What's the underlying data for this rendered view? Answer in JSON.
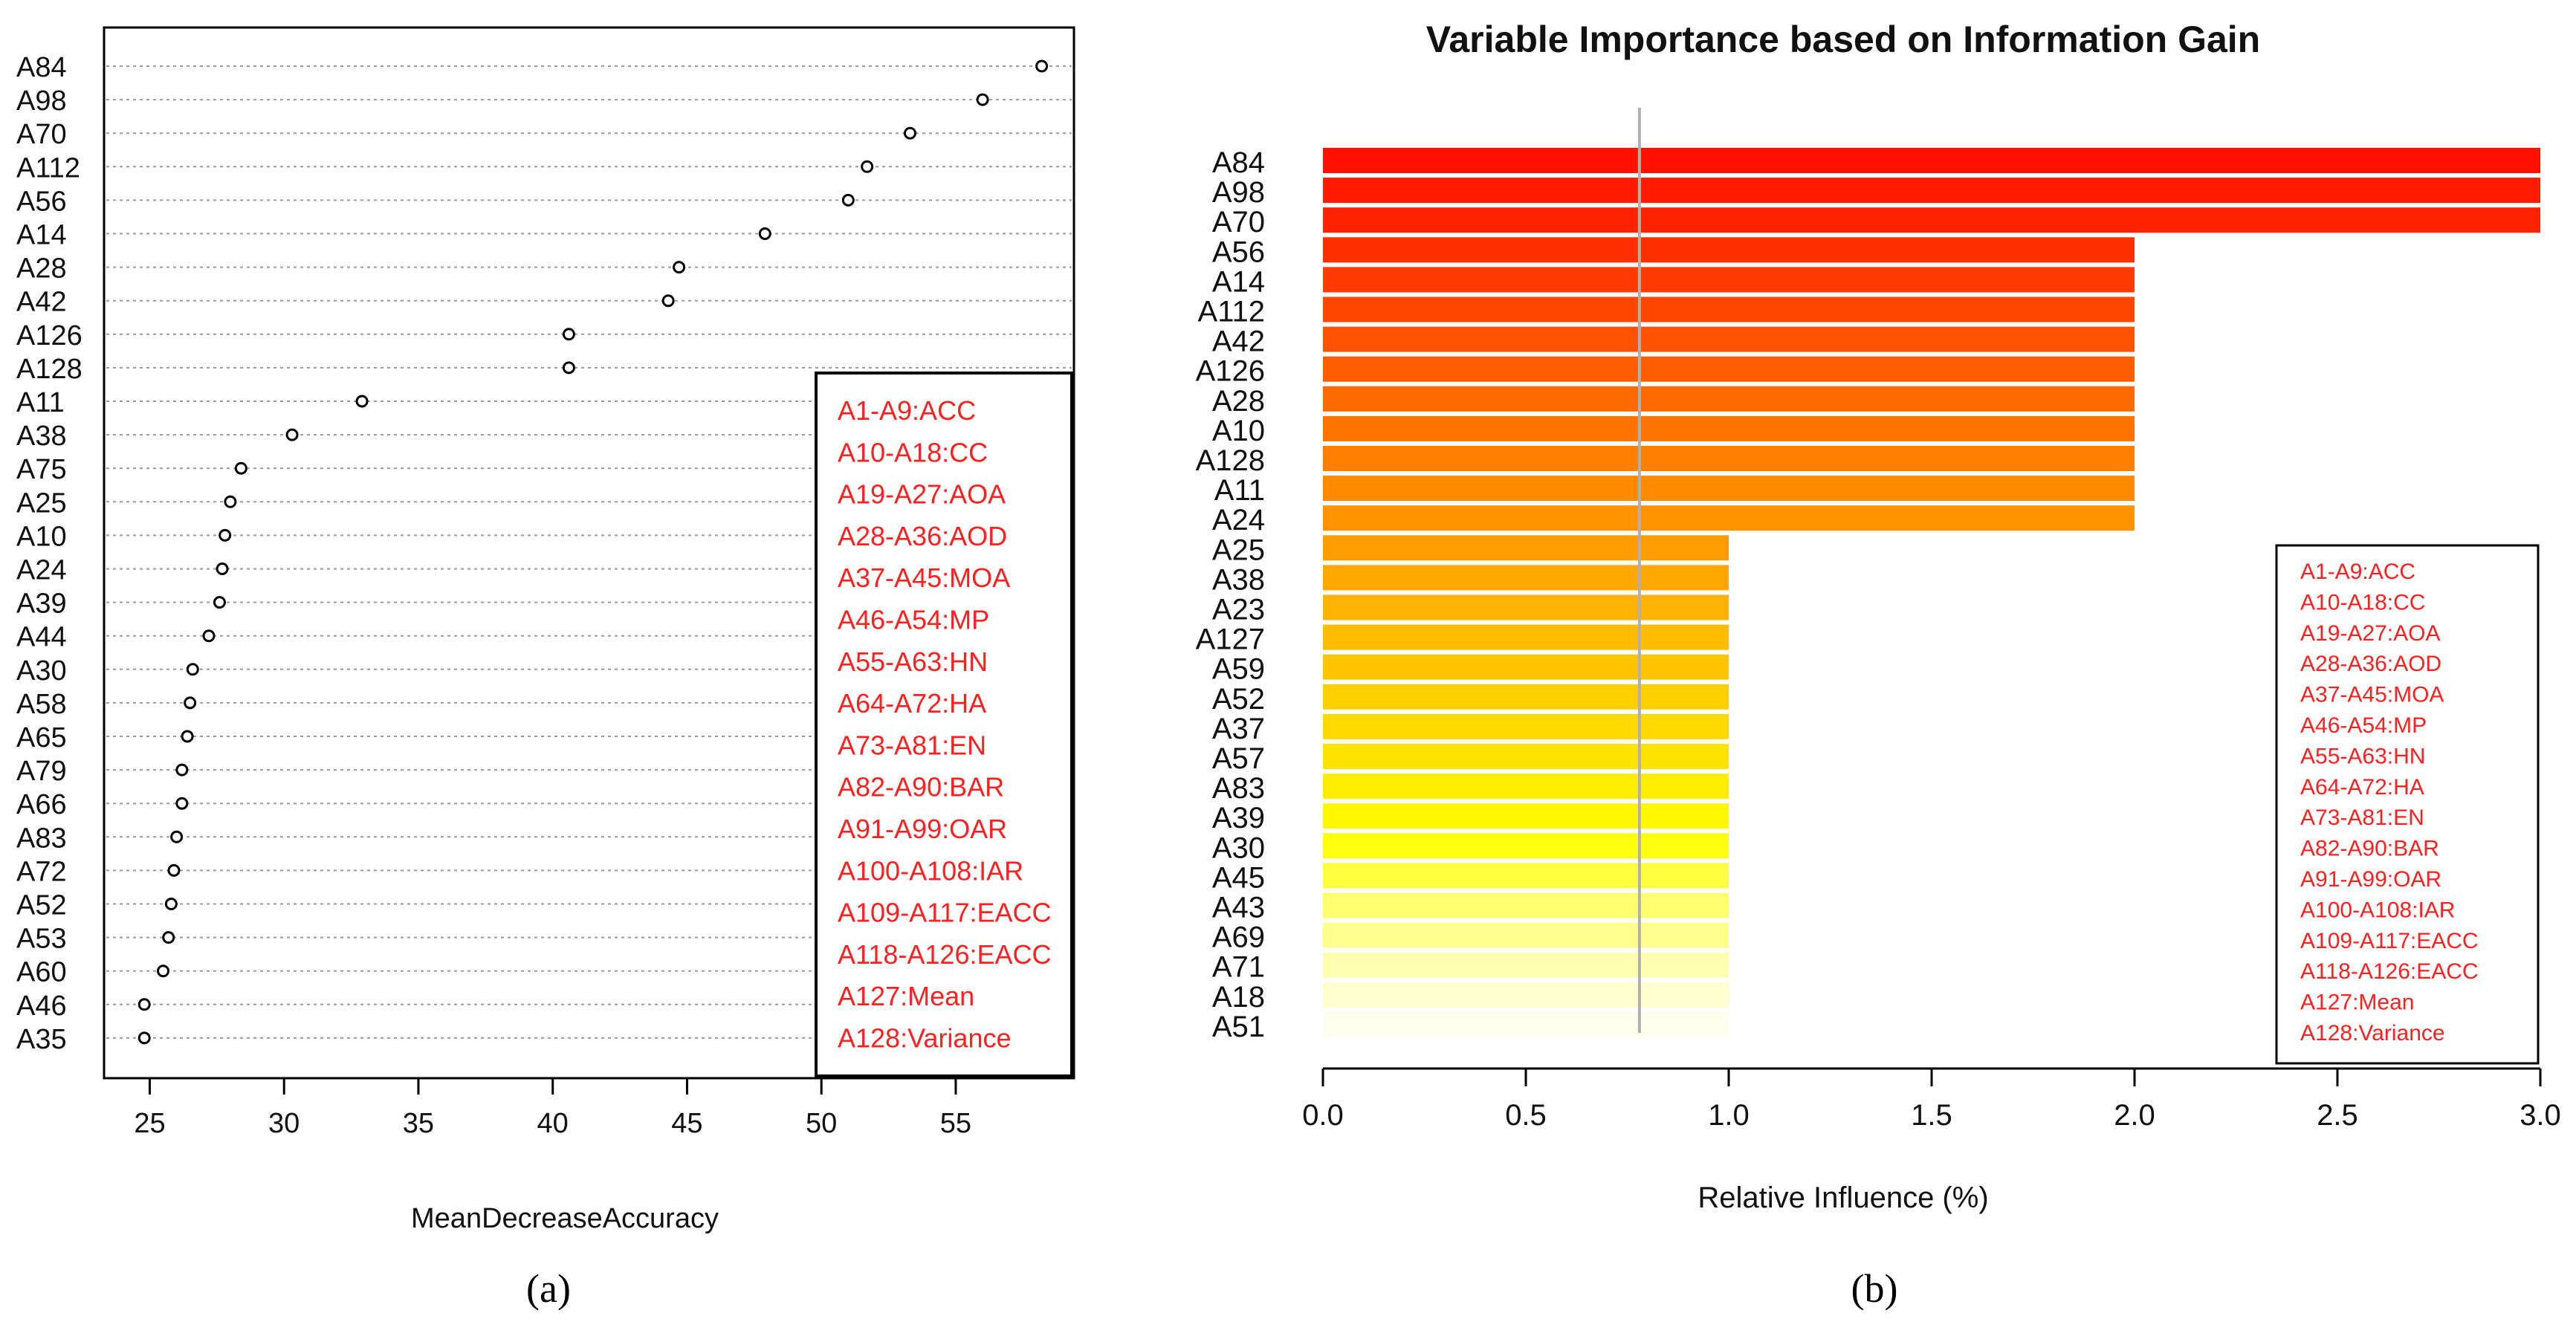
{
  "chart_data": [
    {
      "type": "scatter",
      "style": "dotchart",
      "panel_label": "(a)",
      "title": "",
      "xlabel": "MeanDecreaseAccuracy",
      "ylabel": "",
      "xlim": [
        23.3,
        59.4
      ],
      "xticks": [
        25,
        30,
        35,
        40,
        45,
        50,
        55
      ],
      "grid": true,
      "legend_position": "bottom-right",
      "legend": [
        "A1-A9:ACC",
        "A10-A18:CC",
        "A19-A27:AOA",
        "A28-A36:AOD",
        "A37-A45:MOA",
        "A46-A54:MP",
        "A55-A63:HN",
        "A64-A72:HA",
        "A73-A81:EN",
        "A82-A90:BAR",
        "A91-A99:OAR",
        "A100-A108:IAR",
        "A109-A117:EACC",
        "A118-A126:EACC",
        "A127:Mean",
        "A128:Variance"
      ],
      "categories": [
        "A84",
        "A98",
        "A70",
        "A112",
        "A56",
        "A14",
        "A28",
        "A42",
        "A126",
        "A128",
        "A11",
        "A38",
        "A75",
        "A25",
        "A10",
        "A24",
        "A39",
        "A44",
        "A30",
        "A58",
        "A65",
        "A79",
        "A66",
        "A83",
        "A72",
        "A52",
        "A53",
        "A60",
        "A46",
        "A35"
      ],
      "values": [
        58.2,
        56.0,
        53.3,
        51.7,
        51.0,
        47.9,
        44.7,
        44.3,
        40.6,
        40.6,
        32.9,
        30.3,
        28.4,
        28.0,
        27.8,
        27.7,
        27.6,
        27.2,
        26.6,
        26.5,
        26.4,
        26.2,
        26.2,
        26.0,
        25.9,
        25.8,
        25.7,
        25.5,
        24.8,
        24.8
      ]
    },
    {
      "type": "bar",
      "orientation": "horizontal",
      "panel_label": "(b)",
      "title": "Variable Importance based on Information Gain",
      "xlabel": "Relative Influence (%)",
      "ylabel": "",
      "xlim": [
        0,
        3
      ],
      "xticks": [
        "0.0",
        "0.5",
        "1.0",
        "1.5",
        "2.0",
        "2.5",
        "3.0"
      ],
      "reference_line": 0.78,
      "legend_position": "bottom-right",
      "legend": [
        "A1-A9:ACC",
        "A10-A18:CC",
        "A19-A27:AOA",
        "A28-A36:AOD",
        "A37-A45:MOA",
        "A46-A54:MP",
        "A55-A63:HN",
        "A64-A72:HA",
        "A73-A81:EN",
        "A82-A90:BAR",
        "A91-A99:OAR",
        "A100-A108:IAR",
        "A109-A117:EACC",
        "A118-A126:EACC",
        "A127:Mean",
        "A128:Variance"
      ],
      "categories": [
        "A84",
        "A98",
        "A70",
        "A56",
        "A14",
        "A112",
        "A42",
        "A126",
        "A28",
        "A10",
        "A128",
        "A11",
        "A24",
        "A25",
        "A38",
        "A23",
        "A127",
        "A59",
        "A52",
        "A37",
        "A57",
        "A83",
        "A39",
        "A30",
        "A45",
        "A43",
        "A69",
        "A71",
        "A18",
        "A51"
      ],
      "values": [
        3,
        3,
        3,
        2,
        2,
        2,
        2,
        2,
        2,
        2,
        2,
        2,
        2,
        1,
        1,
        1,
        1,
        1,
        1,
        1,
        1,
        1,
        1,
        1,
        1,
        1,
        1,
        1,
        1,
        1
      ],
      "colors": [
        "#ff1100",
        "#ff1a00",
        "#ff2300",
        "#ff2e00",
        "#ff3a00",
        "#ff4600",
        "#ff5200",
        "#ff5e00",
        "#ff6a00",
        "#ff7500",
        "#ff8000",
        "#ff8a00",
        "#ff9400",
        "#ff9e00",
        "#ffa800",
        "#ffb200",
        "#ffbc00",
        "#ffc600",
        "#ffd000",
        "#ffda00",
        "#ffe400",
        "#ffee00",
        "#fff800",
        "#ffff10",
        "#ffff40",
        "#ffff70",
        "#ffff90",
        "#ffffb0",
        "#ffffd0",
        "#fffff0"
      ]
    }
  ]
}
